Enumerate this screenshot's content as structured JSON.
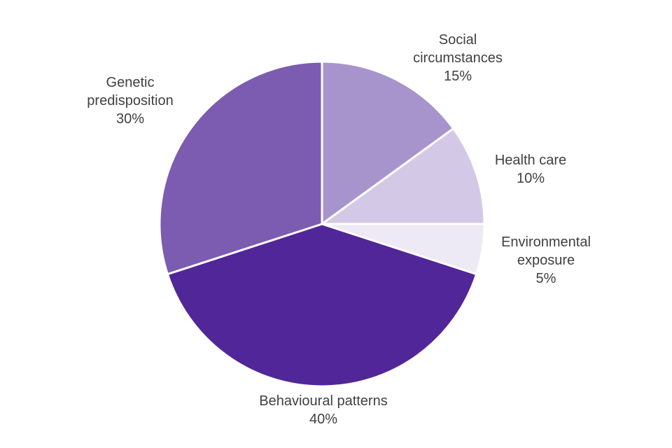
{
  "chart_data": {
    "type": "pie",
    "title": "",
    "start_angle_deg": 0,
    "direction": "clockwise",
    "slices": [
      {
        "label_lines": [
          "Social",
          "circumstances"
        ],
        "value": 15,
        "value_label": "15%",
        "color": "#a794cc"
      },
      {
        "label_lines": [
          "Health care"
        ],
        "value": 10,
        "value_label": "10%",
        "color": "#d3c9e6"
      },
      {
        "label_lines": [
          "Environmental",
          "exposure"
        ],
        "value": 5,
        "value_label": "5%",
        "color": "#ede9f5"
      },
      {
        "label_lines": [
          "Behavioural patterns"
        ],
        "value": 40,
        "value_label": "40%",
        "color": "#512698"
      },
      {
        "label_lines": [
          "Genetic",
          "predisposition"
        ],
        "value": 30,
        "value_label": "30%",
        "color": "#7b5cb1"
      }
    ],
    "legend": "none"
  }
}
